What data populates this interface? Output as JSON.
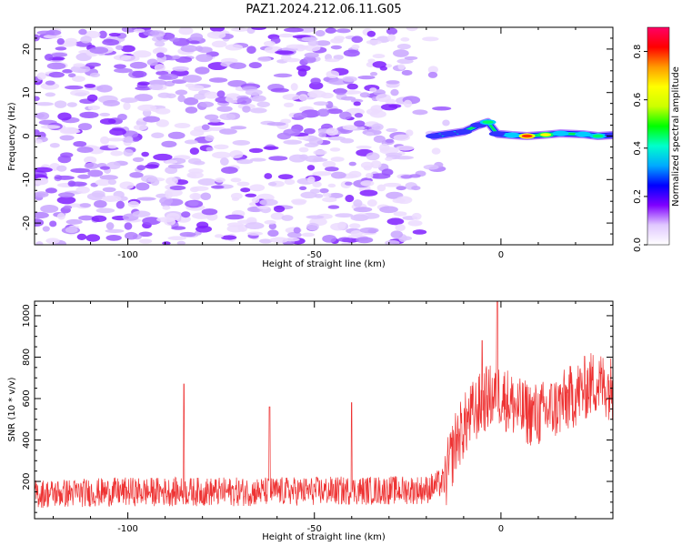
{
  "title": "PAZ1.2024.212.06.11.G05",
  "chart_data": [
    {
      "type": "heatmap",
      "xlabel": "Height of straight line (km)",
      "ylabel": "Frequency (Hz)",
      "xlim": [
        -125,
        30
      ],
      "ylim": [
        -25,
        25
      ],
      "xticks": [
        -100,
        -50,
        0
      ],
      "yticks": [
        -20,
        -10,
        0,
        10,
        20
      ],
      "colorbar": {
        "label": "Normalized spectral amplitude",
        "range": [
          0,
          0.9
        ],
        "ticks": [
          0.0,
          0.2,
          0.4,
          0.6,
          0.8
        ],
        "colors": [
          "#ffffff",
          "#e0c8ff",
          "#7f00ff",
          "#0000ff",
          "#00aaff",
          "#00ffcc",
          "#00ff00",
          "#ccff00",
          "#ffff00",
          "#ff9900",
          "#ff0000",
          "#ff0066"
        ]
      },
      "noise_region_x": [
        -125,
        -15
      ],
      "signal_track": [
        {
          "x": -18,
          "y": 0.0,
          "amp": 0.3
        },
        {
          "x": -14,
          "y": 0.5,
          "amp": 0.35
        },
        {
          "x": -10,
          "y": 1.0,
          "amp": 0.3
        },
        {
          "x": -6,
          "y": 2.5,
          "amp": 0.35
        },
        {
          "x": -3.5,
          "y": 3.2,
          "amp": 0.55
        },
        {
          "x": -1,
          "y": 0.5,
          "amp": 0.4
        },
        {
          "x": 3,
          "y": 0.2,
          "amp": 0.5
        },
        {
          "x": 7,
          "y": 0.0,
          "amp": 0.85
        },
        {
          "x": 12,
          "y": 0.3,
          "amp": 0.7
        },
        {
          "x": 16,
          "y": 0.6,
          "amp": 0.5
        },
        {
          "x": 22,
          "y": 0.4,
          "amp": 0.45
        },
        {
          "x": 26,
          "y": 0.0,
          "amp": 0.55
        },
        {
          "x": 30,
          "y": 0.2,
          "amp": 0.4
        }
      ]
    },
    {
      "type": "line",
      "xlabel": "Height of straight line (km)",
      "ylabel": "SNR (10 * v/v)",
      "xlim": [
        -125,
        30
      ],
      "ylim": [
        20,
        1070
      ],
      "xticks": [
        -100,
        -50,
        0
      ],
      "yticks": [
        200,
        400,
        600,
        800,
        1000
      ],
      "series": [
        {
          "color": "#ee3333",
          "trend": [
            {
              "x": -125,
              "y": 140
            },
            {
              "x": -100,
              "y": 150
            },
            {
              "x": -70,
              "y": 150
            },
            {
              "x": -40,
              "y": 155
            },
            {
              "x": -20,
              "y": 160
            },
            {
              "x": -15,
              "y": 200
            },
            {
              "x": -12,
              "y": 400
            },
            {
              "x": -8,
              "y": 520
            },
            {
              "x": -4,
              "y": 600
            },
            {
              "x": 0,
              "y": 620
            },
            {
              "x": 5,
              "y": 540
            },
            {
              "x": 10,
              "y": 520
            },
            {
              "x": 15,
              "y": 560
            },
            {
              "x": 20,
              "y": 620
            },
            {
              "x": 25,
              "y": 680
            },
            {
              "x": 30,
              "y": 650
            }
          ],
          "spikes": [
            {
              "x": -85,
              "y": 670
            },
            {
              "x": -62,
              "y": 560
            },
            {
              "x": -40,
              "y": 580
            },
            {
              "x": -1,
              "y": 1070
            },
            {
              "x": -5,
              "y": 880
            }
          ]
        }
      ]
    }
  ]
}
